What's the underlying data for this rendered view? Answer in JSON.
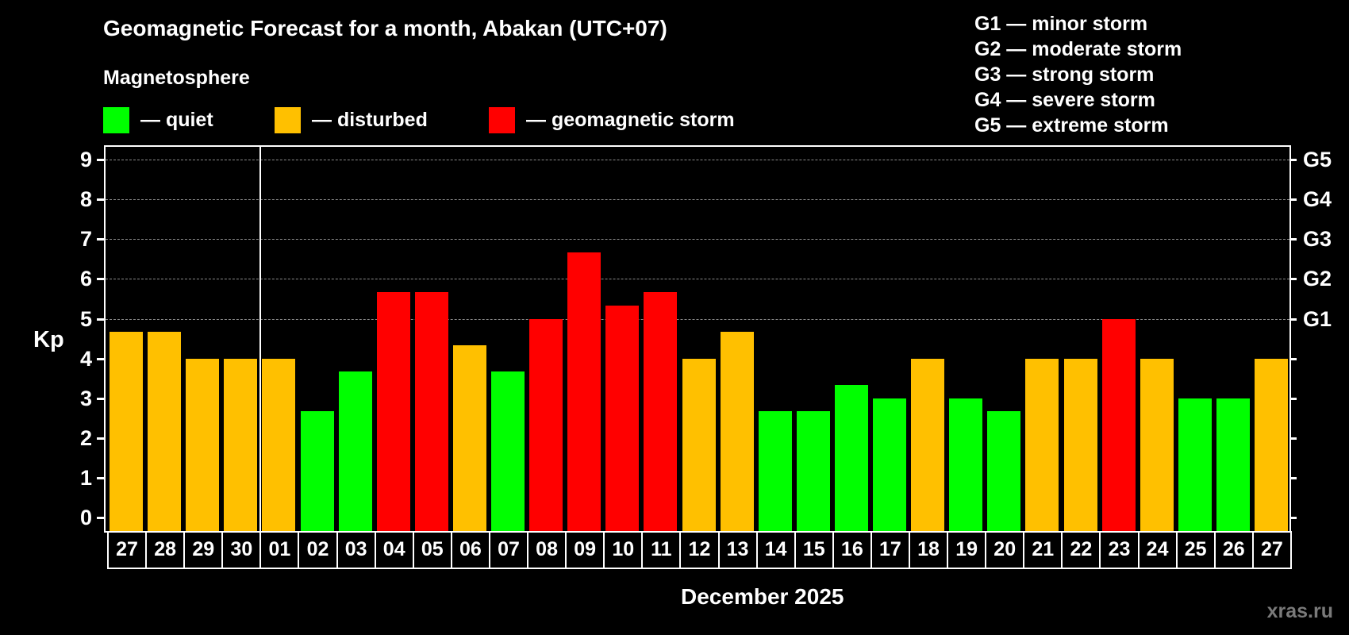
{
  "header": {
    "title": "Geomagnetic Forecast for a month, Abakan (UTC+07)",
    "subtitle": "Magnetosphere",
    "legend": [
      {
        "label": "— quiet",
        "color": "#00ff00"
      },
      {
        "label": "— disturbed",
        "color": "#ffc000"
      },
      {
        "label": "— geomagnetic storm",
        "color": "#ff0000"
      }
    ],
    "storm_scale": [
      "G1 — minor storm",
      "G2 — moderate storm",
      "G3 — strong storm",
      "G4 — severe storm",
      "G5 — extreme storm"
    ]
  },
  "axis": {
    "ylabel": "Kp",
    "xlabel": "December 2025",
    "yticks": [
      "0",
      "1",
      "2",
      "3",
      "4",
      "5",
      "6",
      "7",
      "8",
      "9"
    ],
    "right_ticks": [
      {
        "value": 5,
        "label": "G1"
      },
      {
        "value": 6,
        "label": "G2"
      },
      {
        "value": 7,
        "label": "G3"
      },
      {
        "value": 8,
        "label": "G4"
      },
      {
        "value": 9,
        "label": "G5"
      }
    ]
  },
  "watermark": "xras.ru",
  "colors": {
    "quiet": "#00ff00",
    "disturbed": "#ffc000",
    "storm": "#ff0000",
    "grid": "#8a8a8a",
    "background": "#000000"
  },
  "chart_data": {
    "type": "bar",
    "title": "Geomagnetic Forecast for a month, Abakan (UTC+07)",
    "xlabel": "December 2025",
    "ylabel": "Kp",
    "ylim": [
      0,
      9
    ],
    "grid": true,
    "legend_position": "top",
    "categories": [
      "27",
      "28",
      "29",
      "30",
      "01",
      "02",
      "03",
      "04",
      "05",
      "06",
      "07",
      "08",
      "09",
      "10",
      "11",
      "12",
      "13",
      "14",
      "15",
      "16",
      "17",
      "18",
      "19",
      "20",
      "21",
      "22",
      "23",
      "24",
      "25",
      "26",
      "27"
    ],
    "values": [
      4.67,
      4.67,
      4.0,
      4.0,
      4.0,
      2.67,
      3.67,
      5.67,
      5.67,
      4.33,
      3.67,
      5.0,
      6.67,
      5.33,
      5.67,
      4.0,
      4.67,
      2.67,
      2.67,
      3.33,
      3.0,
      4.0,
      3.0,
      2.67,
      4.0,
      4.0,
      5.0,
      4.0,
      3.0,
      3.0,
      4.0
    ],
    "status": [
      "disturbed",
      "disturbed",
      "disturbed",
      "disturbed",
      "disturbed",
      "quiet",
      "quiet",
      "storm",
      "storm",
      "disturbed",
      "quiet",
      "storm",
      "storm",
      "storm",
      "storm",
      "disturbed",
      "disturbed",
      "quiet",
      "quiet",
      "quiet",
      "quiet",
      "disturbed",
      "quiet",
      "quiet",
      "disturbed",
      "disturbed",
      "storm",
      "disturbed",
      "quiet",
      "quiet",
      "disturbed"
    ],
    "month_divider_after_index": 3,
    "secondary_axis": {
      "5": "G1",
      "6": "G2",
      "7": "G3",
      "8": "G4",
      "9": "G5"
    }
  }
}
